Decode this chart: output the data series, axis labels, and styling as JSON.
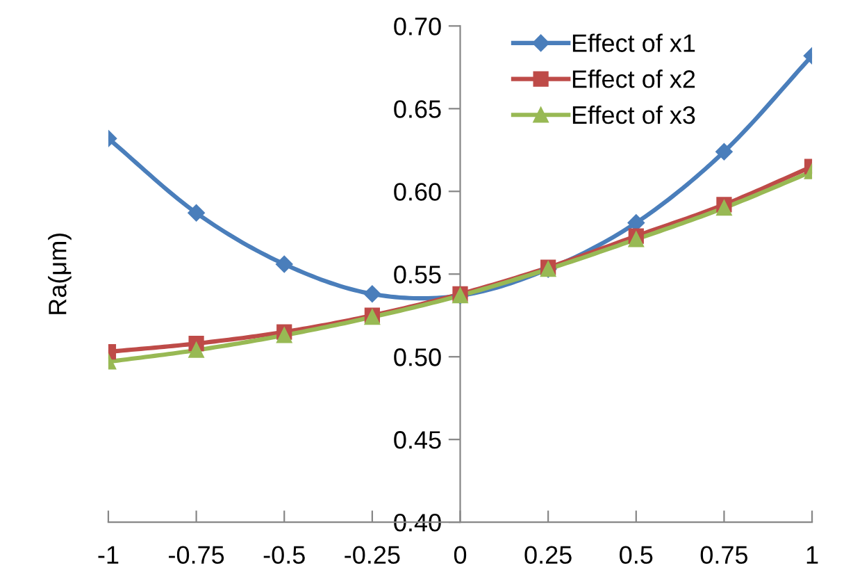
{
  "chart_data": {
    "type": "line",
    "ylabel": "Ra(μm)",
    "x": [
      -1,
      -0.75,
      -0.5,
      -0.25,
      0,
      0.25,
      0.5,
      0.75,
      1
    ],
    "series": [
      {
        "name": "Effect of x1",
        "color": "#4a7ebb",
        "marker": "diamond",
        "values": [
          0.632,
          0.587,
          0.556,
          0.538,
          0.537,
          0.553,
          0.581,
          0.624,
          0.682
        ]
      },
      {
        "name": "Effect of x2",
        "color": "#be4b48",
        "marker": "square",
        "values": [
          0.503,
          0.508,
          0.515,
          0.525,
          0.538,
          0.554,
          0.573,
          0.592,
          0.615
        ]
      },
      {
        "name": "Effect of x3",
        "color": "#98b954",
        "marker": "triangle",
        "values": [
          0.497,
          0.504,
          0.513,
          0.524,
          0.537,
          0.553,
          0.571,
          0.59,
          0.612
        ]
      }
    ],
    "xlim": [
      -1,
      1
    ],
    "xticks": [
      -1,
      -0.75,
      -0.5,
      -0.25,
      0,
      0.25,
      0.5,
      0.75,
      1
    ],
    "ylim": [
      0.4,
      0.7
    ],
    "yticks": [
      {
        "value": 0.4,
        "label": "0.40"
      },
      {
        "value": 0.45,
        "label": "0.45"
      },
      {
        "value": 0.5,
        "label": "0.50"
      },
      {
        "value": 0.55,
        "label": "0.55"
      },
      {
        "value": 0.6,
        "label": "0.60"
      },
      {
        "value": 0.65,
        "label": "0.65"
      },
      {
        "value": 0.7,
        "label": "0.70"
      }
    ],
    "grid": false,
    "legend": "top right",
    "line_style": "solid"
  }
}
